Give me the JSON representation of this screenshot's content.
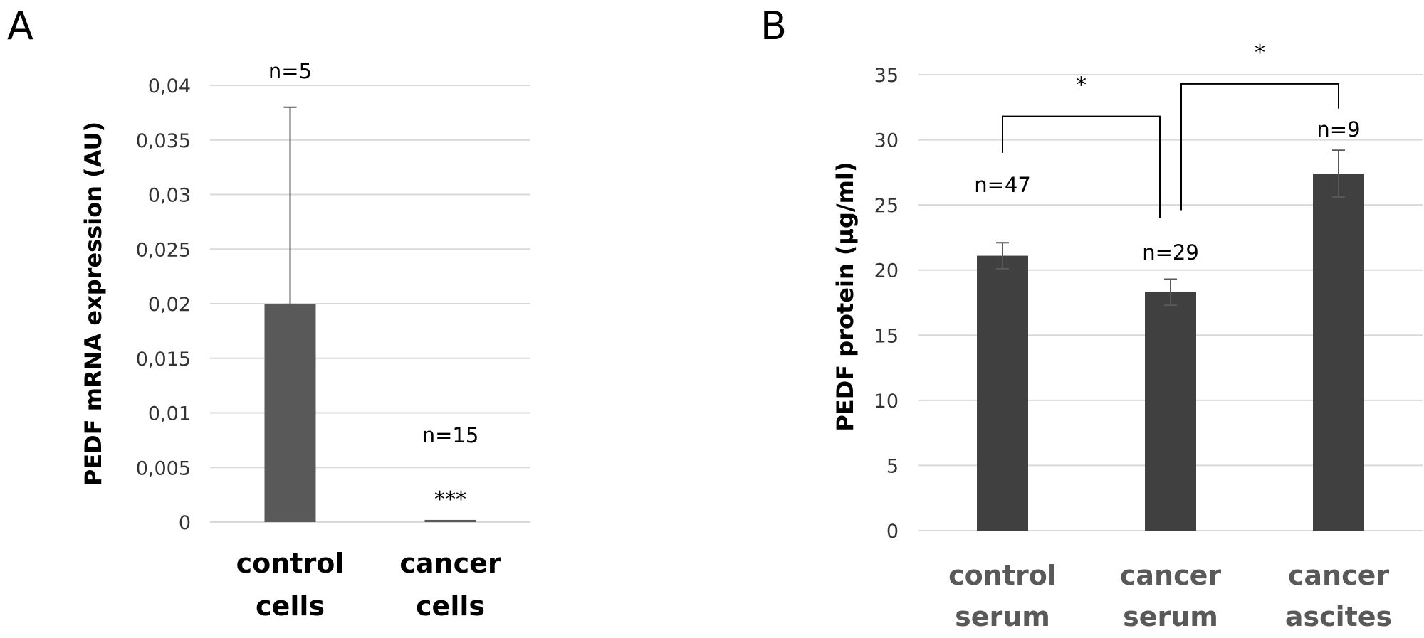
{
  "chart_data": [
    {
      "type": "bar",
      "panel": "A",
      "ylabel": "PEDF mRNA expression (AU)",
      "ylim": [
        0,
        0.04
      ],
      "ticks": [
        "0",
        "0,005",
        "0,01",
        "0,015",
        "0,02",
        "0,025",
        "0,03",
        "0,035",
        "0,04"
      ],
      "grid": true,
      "categories": [
        [
          "control",
          "cells"
        ],
        [
          "cancer",
          "cells"
        ]
      ],
      "values": [
        0.02,
        0.0002
      ],
      "error_upper": [
        0.018,
        0.0
      ],
      "error_lower": [
        0.018,
        0.0
      ],
      "annotations": [
        "n=5",
        "n=15"
      ],
      "significance": [
        "",
        "***"
      ],
      "colors": {
        "bar": "#595959",
        "error": "#595959",
        "grid": "#d9d9d9",
        "tick_text": "#333333",
        "category_text": "#000000"
      }
    },
    {
      "type": "bar",
      "panel": "B",
      "ylabel": "PEDF protein (µg/ml)",
      "ylim": [
        0,
        35
      ],
      "ticks": [
        "0",
        "5",
        "10",
        "15",
        "20",
        "25",
        "30",
        "35"
      ],
      "grid": true,
      "categories": [
        [
          "control",
          "serum"
        ],
        [
          "cancer",
          "serum"
        ],
        [
          "cancer",
          "ascites"
        ]
      ],
      "values": [
        21.1,
        18.3,
        27.4
      ],
      "error_upper": [
        1.0,
        1.0,
        1.8
      ],
      "error_lower": [
        1.0,
        1.0,
        1.8
      ],
      "annotations": [
        "n=47",
        "n=29",
        "n=9"
      ],
      "comparisons": [
        {
          "from": 0,
          "to": 1,
          "label": "*"
        },
        {
          "from": 1,
          "to": 2,
          "label": "*"
        }
      ],
      "colors": {
        "bar": "#404040",
        "error": "#595959",
        "grid": "#d9d9d9",
        "tick_text": "#333333",
        "category_text": "#595959"
      }
    }
  ]
}
